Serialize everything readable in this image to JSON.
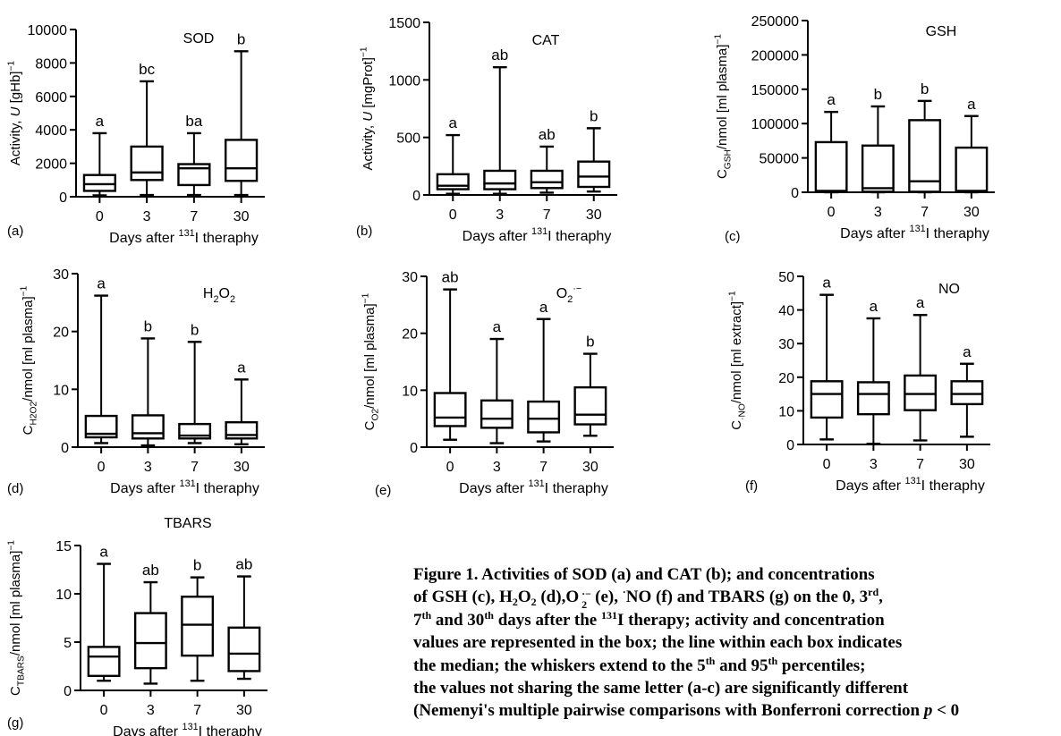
{
  "chart_data": [
    {
      "panel": "(a)",
      "type": "box",
      "title": "SOD",
      "xlabel": "Days after 131I theraphy",
      "ylabel": "Activity, U [gHb]⁻¹",
      "categories": [
        "0",
        "3",
        "7",
        "30"
      ],
      "ylim": [
        0,
        10000
      ],
      "yticks": [
        0,
        2000,
        4000,
        6000,
        8000,
        10000
      ],
      "ytick_labels": [
        "0",
        "2000",
        "4000",
        "6000",
        "8000",
        "10000"
      ],
      "boxes": [
        {
          "category": "0",
          "min": 80,
          "q1": 350,
          "median": 750,
          "q3": 1300,
          "max": 3800
        },
        {
          "category": "3",
          "min": 100,
          "q1": 1000,
          "median": 1450,
          "q3": 3000,
          "max": 6900
        },
        {
          "category": "7",
          "min": 100,
          "q1": 700,
          "median": 1700,
          "q3": 1950,
          "max": 3800
        },
        {
          "category": "30",
          "min": 100,
          "q1": 950,
          "median": 1700,
          "q3": 3400,
          "max": 8700
        }
      ],
      "letters": [
        "a",
        "bc",
        "ba",
        "b"
      ]
    },
    {
      "panel": "(b)",
      "type": "box",
      "title": "CAT",
      "xlabel": "Days after 131I theraphy",
      "ylabel": "Activity, U [mgProt]⁻¹",
      "categories": [
        "0",
        "3",
        "7",
        "30"
      ],
      "ylim": [
        0,
        1500
      ],
      "yticks": [
        0,
        500,
        1000,
        1500
      ],
      "ytick_labels": [
        "0",
        "500",
        "1000",
        "1500"
      ],
      "boxes": [
        {
          "category": "0",
          "min": 10,
          "q1": 50,
          "median": 80,
          "q3": 180,
          "max": 520
        },
        {
          "category": "3",
          "min": 10,
          "q1": 50,
          "median": 100,
          "q3": 210,
          "max": 1110
        },
        {
          "category": "7",
          "min": 20,
          "q1": 60,
          "median": 110,
          "q3": 210,
          "max": 420
        },
        {
          "category": "30",
          "min": 30,
          "q1": 70,
          "median": 160,
          "q3": 290,
          "max": 580
        }
      ],
      "letters": [
        "a",
        "ab",
        "ab",
        "b"
      ]
    },
    {
      "panel": "(c)",
      "type": "box",
      "title": "GSH",
      "xlabel": "Days after 131I theraphy",
      "ylabel": "CGSH/nmol [ml plasma]⁻¹",
      "categories": [
        "0",
        "3",
        "7",
        "30"
      ],
      "ylim": [
        0,
        250000
      ],
      "yticks": [
        0,
        50000,
        100000,
        150000,
        200000,
        250000
      ],
      "ytick_labels": [
        "0",
        "50000",
        "100000",
        "150000",
        "200000",
        "250000"
      ],
      "boxes": [
        {
          "category": "0",
          "min": 0,
          "q1": 500,
          "median": 2000,
          "q3": 73000,
          "max": 117000
        },
        {
          "category": "3",
          "min": 0,
          "q1": 800,
          "median": 6000,
          "q3": 68000,
          "max": 125000
        },
        {
          "category": "7",
          "min": 0,
          "q1": 800,
          "median": 16000,
          "q3": 105000,
          "max": 133000
        },
        {
          "category": "30",
          "min": 0,
          "q1": 500,
          "median": 2000,
          "q3": 65000,
          "max": 111000
        }
      ],
      "letters": [
        "a",
        "b",
        "b",
        "a"
      ]
    },
    {
      "panel": "(d)",
      "type": "box",
      "title": "H2O2",
      "xlabel": "Days after 131I theraphy",
      "ylabel": "CH2O2/nmol [ml plasma]⁻¹",
      "categories": [
        "0",
        "3",
        "7",
        "30"
      ],
      "ylim": [
        0,
        30
      ],
      "yticks": [
        0,
        10,
        20,
        30
      ],
      "ytick_labels": [
        "0",
        "10",
        "20",
        "30"
      ],
      "boxes": [
        {
          "category": "0",
          "min": 0.7,
          "q1": 1.7,
          "median": 2.3,
          "q3": 5.4,
          "max": 26.2
        },
        {
          "category": "3",
          "min": 0.3,
          "q1": 1.5,
          "median": 2.4,
          "q3": 5.5,
          "max": 18.8
        },
        {
          "category": "7",
          "min": 0.7,
          "q1": 1.5,
          "median": 2.0,
          "q3": 4.0,
          "max": 18.2
        },
        {
          "category": "30",
          "min": 0.5,
          "q1": 1.5,
          "median": 2.1,
          "q3": 4.3,
          "max": 11.7
        }
      ],
      "letters": [
        "a",
        "b",
        "b",
        "a"
      ]
    },
    {
      "panel": "(e)",
      "type": "box",
      "title": "O2·⁻",
      "xlabel": "Days after 131I theraphy",
      "ylabel": "CO2/nmol [ml plasma]⁻¹",
      "categories": [
        "0",
        "3",
        "7",
        "30"
      ],
      "ylim": [
        0,
        30
      ],
      "yticks": [
        0,
        10,
        20,
        30
      ],
      "ytick_labels": [
        "0",
        "10",
        "20",
        "30"
      ],
      "boxes": [
        {
          "category": "0",
          "min": 1.3,
          "q1": 3.7,
          "median": 5.2,
          "q3": 9.5,
          "max": 27.7
        },
        {
          "category": "3",
          "min": 0.7,
          "q1": 3.4,
          "median": 5.0,
          "q3": 8.2,
          "max": 19.0
        },
        {
          "category": "7",
          "min": 1.0,
          "q1": 2.6,
          "median": 5.0,
          "q3": 8.0,
          "max": 22.5
        },
        {
          "category": "30",
          "min": 2.0,
          "q1": 4.0,
          "median": 5.7,
          "q3": 10.5,
          "max": 16.4
        }
      ],
      "letters": [
        "ab",
        "a",
        "a",
        "b"
      ]
    },
    {
      "panel": "(f)",
      "type": "box",
      "title": "NO",
      "xlabel": "Days after 131I theraphy",
      "ylabel": "C·NO/nmol [ml extract]⁻¹",
      "categories": [
        "0",
        "3",
        "7",
        "30"
      ],
      "ylim": [
        0,
        50
      ],
      "yticks": [
        0,
        10,
        20,
        30,
        40,
        50
      ],
      "ytick_labels": [
        "0",
        "10",
        "20",
        "30",
        "40",
        "50"
      ],
      "boxes": [
        {
          "category": "0",
          "min": 1.5,
          "q1": 8.0,
          "median": 15.0,
          "q3": 18.8,
          "max": 44.5
        },
        {
          "category": "3",
          "min": 0.2,
          "q1": 9.0,
          "median": 15.0,
          "q3": 18.5,
          "max": 37.5
        },
        {
          "category": "7",
          "min": 1.2,
          "q1": 10.2,
          "median": 15.0,
          "q3": 20.5,
          "max": 38.5
        },
        {
          "category": "30",
          "min": 2.3,
          "q1": 12.0,
          "median": 15.0,
          "q3": 18.8,
          "max": 24.0
        }
      ],
      "letters": [
        "a",
        "a",
        "a",
        "a"
      ]
    },
    {
      "panel": "(g)",
      "type": "box",
      "title": "TBARS",
      "xlabel": "Days after 131I theraphy",
      "ylabel": "CTBARS/nmol [ml plasma]⁻¹",
      "categories": [
        "0",
        "3",
        "7",
        "30"
      ],
      "ylim": [
        0,
        15
      ],
      "yticks": [
        0,
        5,
        10,
        15
      ],
      "ytick_labels": [
        "0",
        "5",
        "10",
        "15"
      ],
      "boxes": [
        {
          "category": "0",
          "min": 1.0,
          "q1": 1.5,
          "median": 3.5,
          "q3": 4.5,
          "max": 13.1
        },
        {
          "category": "3",
          "min": 0.7,
          "q1": 2.3,
          "median": 4.9,
          "q3": 8.0,
          "max": 11.2
        },
        {
          "category": "7",
          "min": 1.0,
          "q1": 3.6,
          "median": 6.8,
          "q3": 9.7,
          "max": 11.7
        },
        {
          "category": "30",
          "min": 1.2,
          "q1": 2.0,
          "median": 3.8,
          "q3": 6.5,
          "max": 11.8
        }
      ],
      "letters": [
        "a",
        "ab",
        "b",
        "ab"
      ]
    }
  ],
  "caption": {
    "line1": "Figure 1. Activities of SOD (a) and CAT (b); and concentrations",
    "line2a": "of GSH (c), H",
    "line2_sub1": "2",
    "line2b": "O",
    "line2_sub2": "2",
    "line2c": " (d),",
    "line2_o": "O",
    "line2_o_sup": "·−",
    "line2_o_sub": "2",
    "line2d": "(e), ",
    "line2_dot": "·",
    "line2e": "NO (f) and TBARS (g) on the 0, 3",
    "line2_sup": "rd",
    "line2f": ",",
    "line3a": "7",
    "line3_sup1": "th",
    "line3b": " and 30",
    "line3_sup2": "th",
    "line3c": " days after the ",
    "line3_sup3": "131",
    "line3d": "I therapy; activity and concentration",
    "line4": "values are represented in the box; the line within each box indicates",
    "line5a": "the median; the whiskers extend to the 5",
    "line5_sup1": "th",
    "line5b": " and 95",
    "line5_sup2": "th",
    "line5c": " percentiles;",
    "line6": "the values not sharing the same letter (a-c) are significantly different",
    "line7a": "(Nemenyi's multiple pairwise comparisons with  Bonferroni correction ",
    "line7_p": "p",
    "line7b": " < 0"
  }
}
